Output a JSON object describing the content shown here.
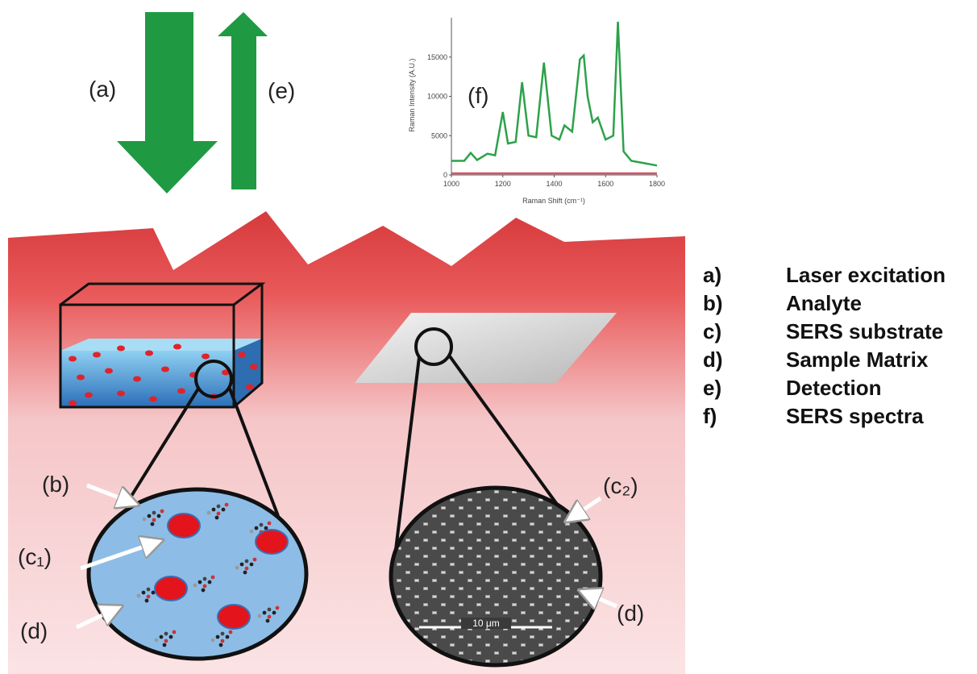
{
  "labels": {
    "a": "(a)",
    "e": "(e)",
    "f": "(f)",
    "b": "(b)",
    "c1": "(c₁)",
    "d_left": "(d)",
    "c2": "(c₂)",
    "d_right": "(d)",
    "scale_bar": "10 μm"
  },
  "spectrum": {
    "x_label": "Raman Shift (cm⁻¹)",
    "y_label": "Raman Intensity (A.U.)",
    "xlim": [
      1000,
      1800
    ],
    "ylim": [
      0,
      20000
    ],
    "xticks": [
      1000,
      1200,
      1400,
      1600,
      1800
    ],
    "yticks": [
      0,
      5000,
      10000,
      15000
    ],
    "series": [
      {
        "color": "#2ca24a",
        "x": [
          1000,
          1050,
          1075,
          1100,
          1140,
          1170,
          1200,
          1220,
          1250,
          1275,
          1300,
          1330,
          1360,
          1390,
          1420,
          1440,
          1470,
          1500,
          1515,
          1530,
          1550,
          1570,
          1600,
          1630,
          1648,
          1670,
          1700,
          1750,
          1800
        ],
        "values": [
          1800,
          1800,
          2800,
          1900,
          2700,
          2500,
          8000,
          4000,
          4200,
          11800,
          5000,
          4800,
          14300,
          5000,
          4500,
          6300,
          5500,
          14700,
          15200,
          10000,
          6700,
          7300,
          4500,
          5000,
          19500,
          3000,
          1800,
          1500,
          1200
        ]
      },
      {
        "color": "#d9536a",
        "x": [
          1000,
          1800
        ],
        "values": [
          200,
          200
        ]
      }
    ]
  },
  "legend": [
    {
      "key": "a)",
      "text": "Laser excitation"
    },
    {
      "key": "b)",
      "text": "Analyte"
    },
    {
      "key": "c)",
      "text": "SERS substrate"
    },
    {
      "key": "d)",
      "text": "Sample Matrix"
    },
    {
      "key": "e)",
      "text": "Detection"
    },
    {
      "key": "f)",
      "text": "SERS spectra"
    }
  ]
}
